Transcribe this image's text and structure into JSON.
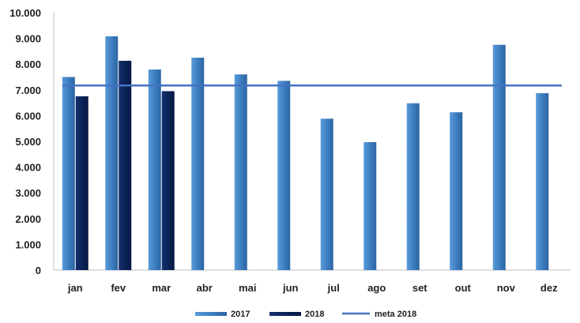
{
  "chart_data": {
    "type": "bar",
    "title": "",
    "xlabel": "",
    "ylabel": "",
    "ylim": [
      0,
      10000
    ],
    "y_ticks": [
      "0",
      "1.000",
      "2.000",
      "3.000",
      "4.000",
      "5.000",
      "6.000",
      "7.000",
      "8.000",
      "9.000",
      "10.000"
    ],
    "y_tick_values": [
      0,
      1000,
      2000,
      3000,
      4000,
      5000,
      6000,
      7000,
      8000,
      9000,
      10000
    ],
    "categories": [
      "jan",
      "fev",
      "mar",
      "abr",
      "mai",
      "jun",
      "jul",
      "ago",
      "set",
      "out",
      "nov",
      "dez"
    ],
    "series": [
      {
        "name": "2017",
        "type": "bar",
        "color": "#3d7fc1",
        "values": [
          7500,
          9080,
          7790,
          8250,
          7600,
          7350,
          5880,
          4970,
          6480,
          6130,
          8750,
          6870
        ]
      },
      {
        "name": "2018",
        "type": "bar",
        "color": "#0b2358",
        "values": [
          6750,
          8130,
          6950,
          null,
          null,
          null,
          null,
          null,
          null,
          null,
          null,
          null
        ]
      },
      {
        "name": "meta 2018",
        "type": "line",
        "color": "#4472c4",
        "value": 7170
      }
    ],
    "grid": false,
    "legend_position": "bottom"
  }
}
